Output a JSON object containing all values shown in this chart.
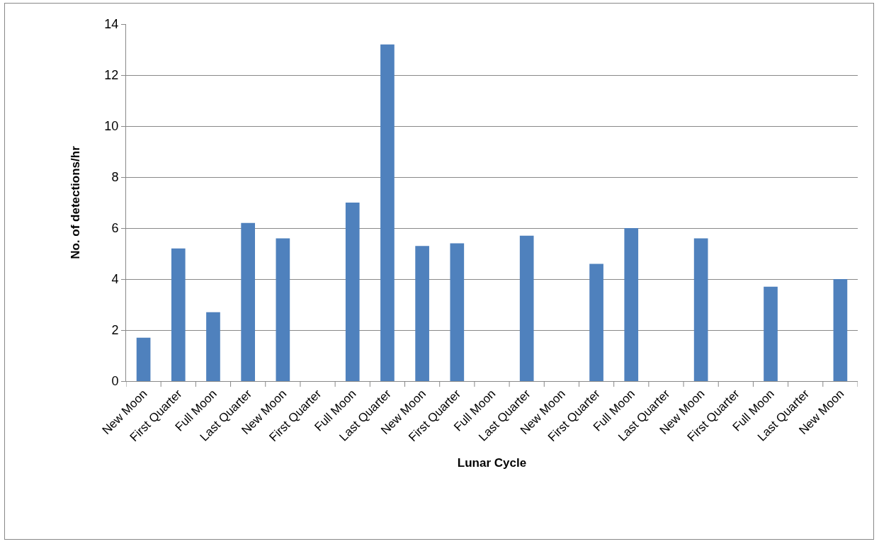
{
  "chart_data": {
    "type": "bar",
    "xlabel": "Lunar Cycle",
    "ylabel": "No. of detections/hr",
    "categories": [
      "New Moon",
      "First Quarter",
      "Full Moon",
      "Last Quarter",
      "New Moon",
      "First Quarter",
      "Full Moon",
      "Last Quarter",
      "New Moon",
      "First Quarter",
      "Full Moon",
      "Last Quarter",
      "New Moon",
      "First Quarter",
      "Full Moon",
      "Last Quarter",
      "New Moon",
      "First Quarter",
      "Full Moon",
      "Last Quarter",
      "New Moon"
    ],
    "values": [
      1.7,
      5.2,
      2.7,
      6.2,
      5.6,
      0,
      7.0,
      13.2,
      5.3,
      5.4,
      0,
      5.7,
      0,
      4.6,
      6.0,
      0,
      5.6,
      0,
      3.7,
      0,
      4.0
    ],
    "color": "#4f81bd",
    "ylim": [
      0,
      14
    ],
    "yticks": [
      0,
      2,
      4,
      6,
      8,
      10,
      12,
      14
    ],
    "grid": "y"
  }
}
